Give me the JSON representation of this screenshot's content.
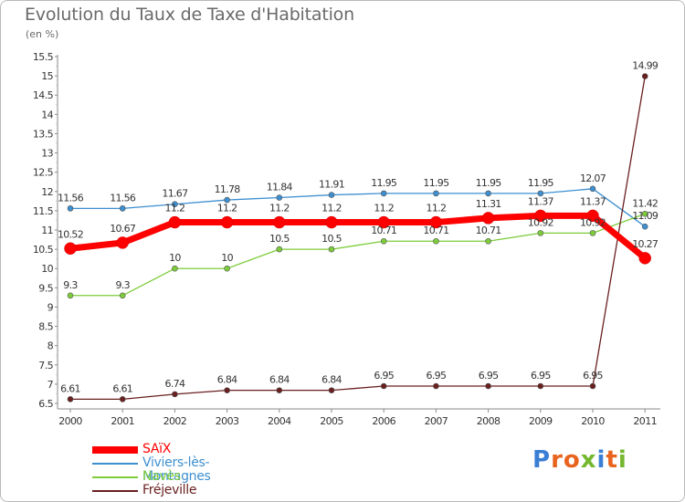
{
  "header": {
    "title": "Evolution du Taux de Taxe d'Habitation",
    "subtitle": "(en %)"
  },
  "logo": {
    "text": "Proxiti",
    "colors": [
      "#3a7fd4",
      "#e8641e",
      "#e8641e",
      "#74b82f",
      "#3a7fd4",
      "#e8641e",
      "#74b82f"
    ]
  },
  "chart_data": {
    "type": "line",
    "x": [
      "2000",
      "2001",
      "2002",
      "2003",
      "2004",
      "2005",
      "2006",
      "2007",
      "2008",
      "2009",
      "2010",
      "2011"
    ],
    "ylim": [
      6.5,
      15.5
    ],
    "yticks": [
      "6.5",
      "7",
      "7.5",
      "8",
      "8.5",
      "9",
      "9.5",
      "10",
      "10.5",
      "11",
      "11.5",
      "12",
      "12.5",
      "13",
      "13.5",
      "14",
      "14.5",
      "15",
      "15.5"
    ],
    "grid": false,
    "legend_position": "bottom-left",
    "series": [
      {
        "name": "SAïX",
        "color": "#ff0000",
        "values": [
          10.52,
          10.67,
          11.2,
          11.2,
          11.2,
          11.2,
          11.2,
          11.2,
          11.31,
          11.37,
          11.37,
          10.27
        ],
        "labels": [
          "10.52",
          "10.67",
          "11.2",
          "11.2",
          "11.2",
          "11.2",
          "11.2",
          "11.2",
          "11.31",
          "11.37",
          "11.37",
          "10.27"
        ]
      },
      {
        "name": "Viviers-lès-Montagnes",
        "color": "#3d8fd0",
        "values": [
          11.56,
          11.56,
          11.67,
          11.78,
          11.84,
          11.91,
          11.95,
          11.95,
          11.95,
          11.95,
          12.07,
          11.09
        ],
        "labels": [
          "11.56",
          "11.56",
          "11.67",
          "11.78",
          "11.84",
          "11.91",
          "11.95",
          "11.95",
          "11.95",
          "11.95",
          "12.07",
          "11.09"
        ]
      },
      {
        "name": "Navès",
        "color": "#7dcc3a",
        "values": [
          9.3,
          9.3,
          10,
          10,
          10.5,
          10.5,
          10.71,
          10.71,
          10.71,
          10.92,
          10.92,
          11.42
        ],
        "labels": [
          "9.3",
          "9.3",
          "10",
          "10",
          "10.5",
          "10.5",
          "10.71",
          "10.71",
          "10.71",
          "10.92",
          "10.92",
          "11.42"
        ]
      },
      {
        "name": "Fréjeville",
        "color": "#6a1f1f",
        "values": [
          6.61,
          6.61,
          6.74,
          6.84,
          6.84,
          6.84,
          6.95,
          6.95,
          6.95,
          6.95,
          6.95,
          14.99
        ],
        "labels": [
          "6.61",
          "6.61",
          "6.74",
          "6.84",
          "6.84",
          "6.84",
          "6.95",
          "6.95",
          "6.95",
          "6.95",
          "6.95",
          "14.99"
        ]
      }
    ]
  }
}
